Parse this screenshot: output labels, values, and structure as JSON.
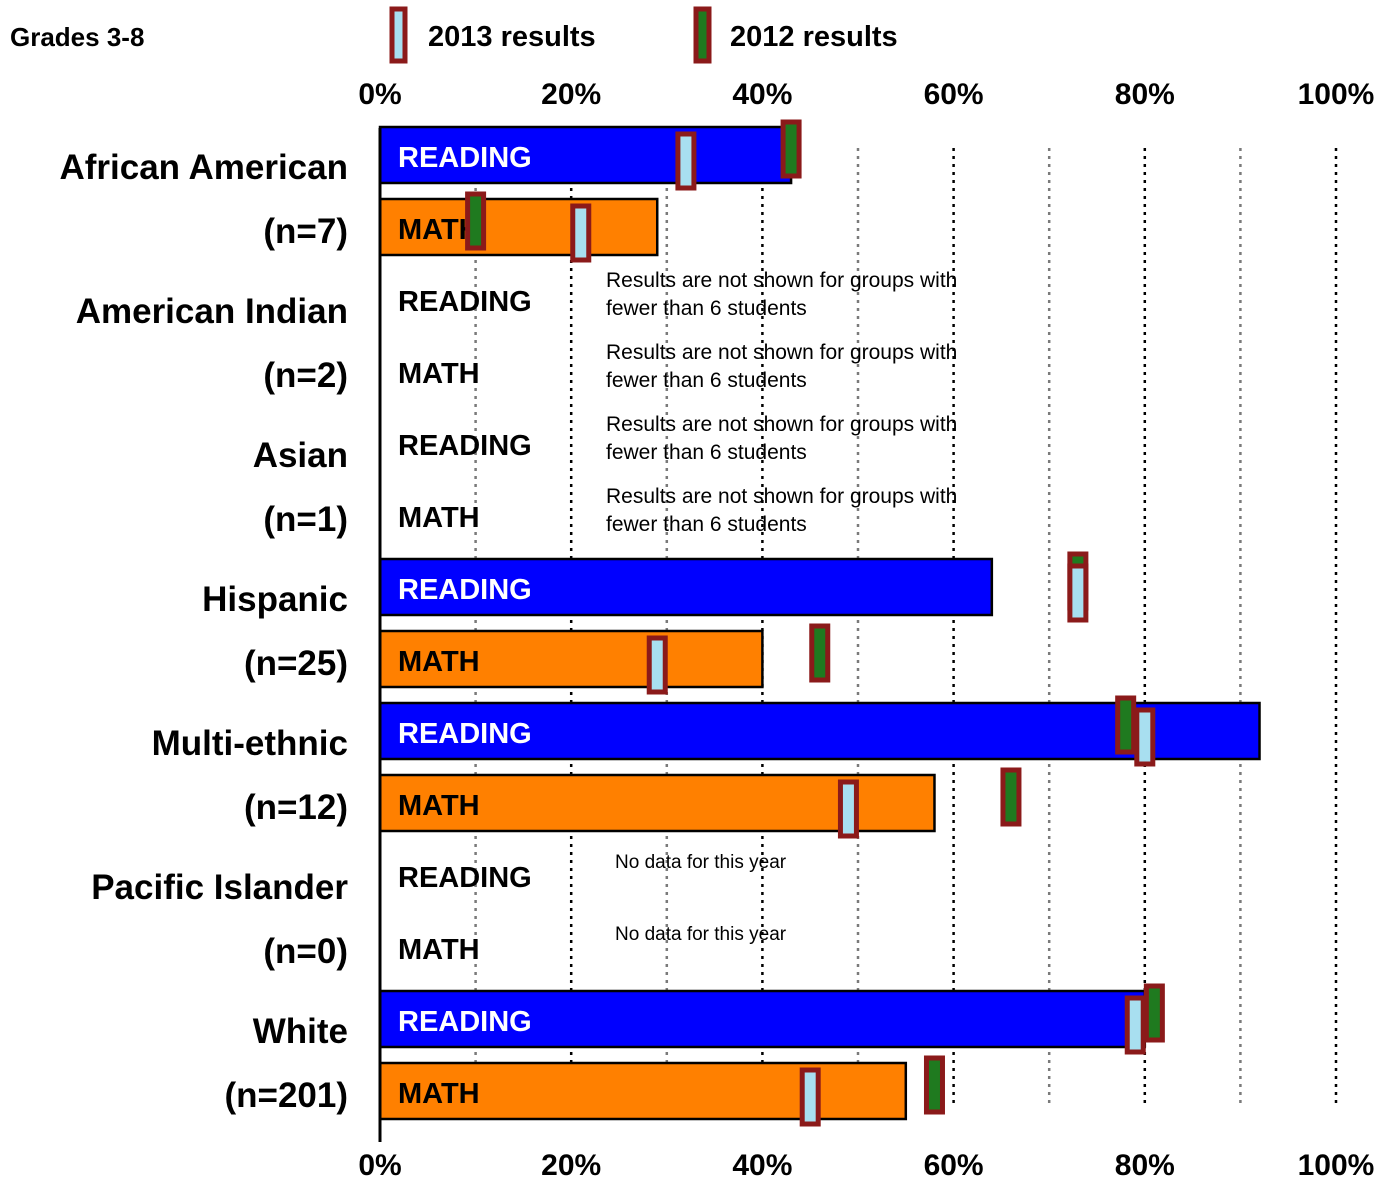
{
  "chart_data": {
    "type": "bar",
    "subtitle": "Grades 3-8",
    "legend": [
      {
        "label": "2013 results",
        "key": "2013",
        "fill": "#a8dff0",
        "stroke": "#8b1a1a"
      },
      {
        "label": "2012 results",
        "key": "2012",
        "fill": "#1f7a1f",
        "stroke": "#8b1a1a"
      }
    ],
    "legend_position": "top",
    "xlim": [
      0,
      100
    ],
    "x_ticks": [
      "0%",
      "20%",
      "40%",
      "60%",
      "80%",
      "100%"
    ],
    "colors": {
      "reading": "#0000ff",
      "math": "#ff8000",
      "marker_border": "#8b1a1a"
    },
    "groups": [
      {
        "name": "African American",
        "n_label": "(n=7)",
        "rows": [
          {
            "subject": "READING",
            "value": 43,
            "marker_2013": 32,
            "marker_2012": 43
          },
          {
            "subject": "MATH",
            "value": 29,
            "marker_2013": 21,
            "marker_2012": 10
          }
        ]
      },
      {
        "name": "American Indian",
        "n_label": "(n=2)",
        "rows": [
          {
            "subject": "READING",
            "note": "Results are not shown for groups with fewer than 6 students"
          },
          {
            "subject": "MATH",
            "note": "Results are not shown for groups with fewer than 6 students"
          }
        ]
      },
      {
        "name": "Asian",
        "n_label": "(n=1)",
        "rows": [
          {
            "subject": "READING",
            "note": "Results are not shown for groups with fewer than 6 students"
          },
          {
            "subject": "MATH",
            "note": "Results are not shown for groups with fewer than 6 students"
          }
        ]
      },
      {
        "name": "Hispanic",
        "n_label": "(n=25)",
        "rows": [
          {
            "subject": "READING",
            "value": 64,
            "marker_2013": 73,
            "marker_2012": 73
          },
          {
            "subject": "MATH",
            "value": 40,
            "marker_2013": 29,
            "marker_2012": 46
          }
        ]
      },
      {
        "name": "Multi-ethnic",
        "n_label": "(n=12)",
        "rows": [
          {
            "subject": "READING",
            "value": 92,
            "marker_2013": 80,
            "marker_2012": 78
          },
          {
            "subject": "MATH",
            "value": 58,
            "marker_2013": 49,
            "marker_2012": 66
          }
        ]
      },
      {
        "name": "Pacific Islander",
        "n_label": "(n=0)",
        "rows": [
          {
            "subject": "READING",
            "note": "No data for this year"
          },
          {
            "subject": "MATH",
            "note": "No data for this year"
          }
        ]
      },
      {
        "name": "White",
        "n_label": "(n=201)",
        "rows": [
          {
            "subject": "READING",
            "value": 80,
            "marker_2013": 79,
            "marker_2012": 81
          },
          {
            "subject": "MATH",
            "value": 55,
            "marker_2013": 45,
            "marker_2012": 58
          }
        ]
      }
    ]
  }
}
